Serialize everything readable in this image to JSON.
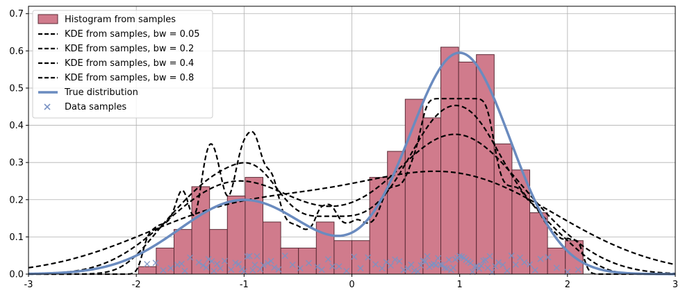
{
  "chart_data": {
    "type": "histogram",
    "title": "",
    "xlabel": "",
    "ylabel": "",
    "xlim": [
      -3,
      3
    ],
    "ylim": [
      0,
      0.72
    ],
    "xticks": [
      "-3",
      "-2",
      "-1",
      "0",
      "1",
      "2",
      "3"
    ],
    "yticks": [
      "0.0",
      "0.1",
      "0.2",
      "0.3",
      "0.4",
      "0.5",
      "0.6",
      "0.7"
    ],
    "grid": true,
    "legend_position": "upper-left",
    "legend": [
      "Histogram from samples",
      "KDE from samples, bw = 0.05",
      "KDE from samples, bw = 0.2",
      "KDE from samples, bw = 0.4",
      "KDE from samples, bw = 0.8",
      "True distribution",
      "Data samples"
    ],
    "colors": {
      "histogram_fill": "#d07b8c",
      "histogram_edge": "#5a2a35",
      "kde": "#000000",
      "true_distribution": "#6a8bbf",
      "samples": "#7a93c4",
      "grid": "#b0b0b0"
    },
    "histogram": {
      "bin_edges": [
        -1.98,
        -1.815,
        -1.65,
        -1.485,
        -1.32,
        -1.155,
        -0.99,
        -0.825,
        -0.66,
        -0.495,
        -0.33,
        -0.165,
        0.0,
        0.165,
        0.33,
        0.495,
        0.66,
        0.825,
        0.99,
        1.155,
        1.32,
        1.485,
        1.65,
        1.815,
        1.98,
        2.145,
        2.25
      ],
      "heights": [
        0.02,
        0.07,
        0.12,
        0.235,
        0.12,
        0.21,
        0.26,
        0.14,
        0.07,
        0.07,
        0.14,
        0.09,
        0.09,
        0.26,
        0.33,
        0.47,
        0.42,
        0.61,
        0.57,
        0.59,
        0.35,
        0.28,
        0.165,
        0.07,
        0.09,
        0.0
      ]
    },
    "true_distribution": {
      "components": [
        {
          "weight": 0.3,
          "mean": -1.0,
          "sd": 0.6
        },
        {
          "weight": 0.7,
          "mean": 1.0,
          "sd": 0.47
        }
      ]
    },
    "kde_bandwidths": [
      0.05,
      0.2,
      0.4,
      0.8
    ],
    "samples": [
      -1.9,
      -1.82,
      -1.75,
      -1.68,
      -1.62,
      -1.58,
      -1.55,
      -1.5,
      -1.42,
      -1.38,
      -1.35,
      -1.33,
      -1.3,
      -1.28,
      -1.25,
      -1.22,
      -1.18,
      -1.12,
      -1.08,
      -1.05,
      -1.02,
      -1.0,
      -0.97,
      -0.95,
      -0.92,
      -0.9,
      -0.88,
      -0.85,
      -0.82,
      -0.78,
      -0.75,
      -0.72,
      -0.68,
      -0.62,
      -0.55,
      -0.48,
      -0.4,
      -0.32,
      -0.28,
      -0.22,
      -0.18,
      -0.12,
      -0.05,
      0.02,
      0.08,
      0.15,
      0.22,
      0.28,
      0.32,
      0.36,
      0.4,
      0.44,
      0.48,
      0.52,
      0.55,
      0.58,
      0.61,
      0.64,
      0.66,
      0.68,
      0.7,
      0.72,
      0.74,
      0.76,
      0.78,
      0.8,
      0.82,
      0.84,
      0.86,
      0.88,
      0.9,
      0.92,
      0.94,
      0.96,
      0.98,
      1.0,
      1.02,
      1.04,
      1.06,
      1.08,
      1.1,
      1.12,
      1.14,
      1.16,
      1.18,
      1.2,
      1.22,
      1.24,
      1.26,
      1.28,
      1.3,
      1.33,
      1.36,
      1.4,
      1.44,
      1.48,
      1.52,
      1.56,
      1.6,
      1.65,
      1.7,
      1.75,
      1.82,
      1.9,
      2.0,
      2.1
    ]
  }
}
